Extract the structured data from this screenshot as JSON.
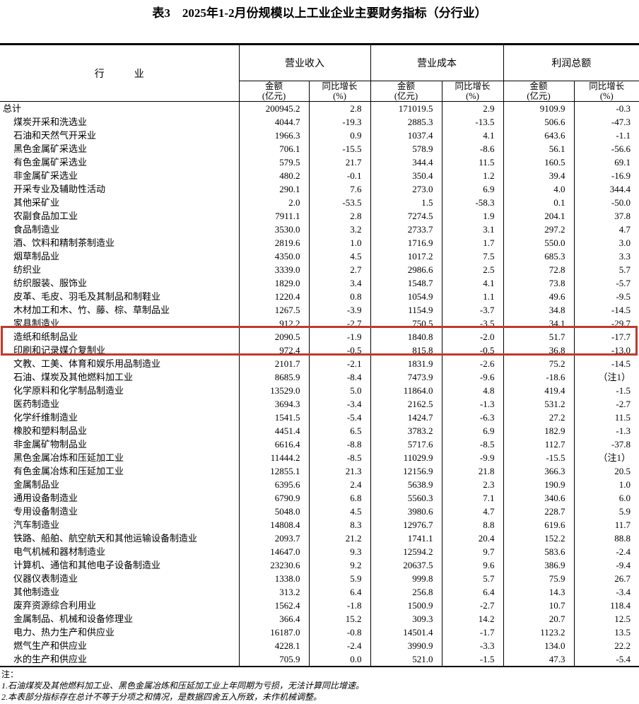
{
  "title": "表3　2025年1-2月份规模以上工业企业主要财务指标（分行业）",
  "colors": {
    "table_border": "#000000",
    "highlight_box": "#c0392b",
    "text": "#000000",
    "background": "#ffffff"
  },
  "table": {
    "industry_header": "行　业",
    "groups": [
      {
        "label": "营业收入"
      },
      {
        "label": "营业成本"
      },
      {
        "label": "利润总额"
      }
    ],
    "sub_headers": {
      "amount_line1": "金额",
      "amount_line2": "(亿元)",
      "growth_line1": "同比增长",
      "growth_line2": "(%)"
    },
    "rows": [
      {
        "industry": "总计",
        "indent": false,
        "highlight": false,
        "values": [
          "200945.2",
          "2.8",
          "171019.5",
          "2.9",
          "9109.9",
          "-0.3"
        ]
      },
      {
        "industry": "煤炭开采和洗选业",
        "indent": true,
        "highlight": false,
        "values": [
          "4044.7",
          "-19.3",
          "2885.3",
          "-13.5",
          "506.6",
          "-47.3"
        ]
      },
      {
        "industry": "石油和天然气开采业",
        "indent": true,
        "highlight": false,
        "values": [
          "1966.3",
          "0.9",
          "1037.4",
          "4.1",
          "643.6",
          "-1.1"
        ]
      },
      {
        "industry": "黑色金属矿采选业",
        "indent": true,
        "highlight": false,
        "values": [
          "706.1",
          "-15.5",
          "578.9",
          "-8.6",
          "56.1",
          "-56.6"
        ]
      },
      {
        "industry": "有色金属矿采选业",
        "indent": true,
        "highlight": false,
        "values": [
          "579.5",
          "21.7",
          "344.4",
          "11.5",
          "160.5",
          "69.1"
        ]
      },
      {
        "industry": "非金属矿采选业",
        "indent": true,
        "highlight": false,
        "values": [
          "480.2",
          "-0.1",
          "350.4",
          "1.2",
          "39.4",
          "-16.9"
        ]
      },
      {
        "industry": "开采专业及辅助性活动",
        "indent": true,
        "highlight": false,
        "values": [
          "290.1",
          "7.6",
          "273.0",
          "6.9",
          "4.0",
          "344.4"
        ]
      },
      {
        "industry": "其他采矿业",
        "indent": true,
        "highlight": false,
        "values": [
          "2.0",
          "-53.5",
          "1.5",
          "-58.3",
          "0.1",
          "-50.0"
        ]
      },
      {
        "industry": "农副食品加工业",
        "indent": true,
        "highlight": false,
        "values": [
          "7911.1",
          "2.8",
          "7274.5",
          "1.9",
          "204.1",
          "37.8"
        ]
      },
      {
        "industry": "食品制造业",
        "indent": true,
        "highlight": false,
        "values": [
          "3530.0",
          "3.2",
          "2733.7",
          "3.1",
          "297.2",
          "4.7"
        ]
      },
      {
        "industry": "酒、饮料和精制茶制造业",
        "indent": true,
        "highlight": false,
        "values": [
          "2819.6",
          "1.0",
          "1716.9",
          "1.7",
          "550.0",
          "3.0"
        ]
      },
      {
        "industry": "烟草制品业",
        "indent": true,
        "highlight": false,
        "values": [
          "4350.0",
          "4.5",
          "1017.2",
          "7.5",
          "685.3",
          "3.3"
        ]
      },
      {
        "industry": "纺织业",
        "indent": true,
        "highlight": false,
        "values": [
          "3339.0",
          "2.7",
          "2986.6",
          "2.5",
          "72.8",
          "5.7"
        ]
      },
      {
        "industry": "纺织服装、服饰业",
        "indent": true,
        "highlight": false,
        "values": [
          "1829.0",
          "3.4",
          "1548.7",
          "4.1",
          "73.8",
          "-5.7"
        ]
      },
      {
        "industry": "皮革、毛皮、羽毛及其制品和制鞋业",
        "indent": true,
        "highlight": false,
        "values": [
          "1220.4",
          "0.8",
          "1054.9",
          "1.1",
          "49.6",
          "-9.5"
        ]
      },
      {
        "industry": "木材加工和木、竹、藤、棕、草制品业",
        "indent": true,
        "highlight": false,
        "values": [
          "1267.5",
          "-3.9",
          "1154.9",
          "-3.7",
          "34.8",
          "-14.5"
        ]
      },
      {
        "industry": "家具制造业",
        "indent": true,
        "highlight": false,
        "values": [
          "912.2",
          "-2.7",
          "750.5",
          "-3.5",
          "34.1",
          "-29.7"
        ]
      },
      {
        "industry": "造纸和纸制品业",
        "indent": true,
        "highlight": true,
        "values": [
          "2090.5",
          "-1.9",
          "1840.8",
          "-2.0",
          "51.7",
          "-17.7"
        ]
      },
      {
        "industry": "印刷和记录媒介复制业",
        "indent": true,
        "highlight": true,
        "values": [
          "972.4",
          "-0.5",
          "815.8",
          "-0.5",
          "36.8",
          "-13.0"
        ]
      },
      {
        "industry": "文教、工美、体育和娱乐用品制造业",
        "indent": true,
        "highlight": false,
        "values": [
          "2101.7",
          "-2.1",
          "1831.9",
          "-2.6",
          "75.2",
          "-14.5"
        ]
      },
      {
        "industry": "石油、煤炭及其他燃料加工业",
        "indent": true,
        "highlight": false,
        "values": [
          "8685.9",
          "-8.4",
          "7473.9",
          "-9.6",
          "-18.6",
          "（注1）"
        ]
      },
      {
        "industry": "化学原料和化学制品制造业",
        "indent": true,
        "highlight": false,
        "values": [
          "13529.0",
          "5.0",
          "11864.0",
          "4.8",
          "419.4",
          "-1.5"
        ]
      },
      {
        "industry": "医药制造业",
        "indent": true,
        "highlight": false,
        "values": [
          "3694.3",
          "-3.4",
          "2162.5",
          "-1.3",
          "531.2",
          "-2.7"
        ]
      },
      {
        "industry": "化学纤维制造业",
        "indent": true,
        "highlight": false,
        "values": [
          "1541.5",
          "-5.4",
          "1424.7",
          "-6.3",
          "27.2",
          "11.5"
        ]
      },
      {
        "industry": "橡胶和塑料制品业",
        "indent": true,
        "highlight": false,
        "values": [
          "4451.4",
          "6.5",
          "3783.2",
          "6.9",
          "182.9",
          "-1.3"
        ]
      },
      {
        "industry": "非金属矿物制品业",
        "indent": true,
        "highlight": false,
        "values": [
          "6616.4",
          "-8.8",
          "5717.6",
          "-8.5",
          "112.7",
          "-37.8"
        ]
      },
      {
        "industry": "黑色金属冶炼和压延加工业",
        "indent": true,
        "highlight": false,
        "values": [
          "11444.2",
          "-8.5",
          "11029.9",
          "-9.9",
          "-15.5",
          "（注1）"
        ]
      },
      {
        "industry": "有色金属冶炼和压延加工业",
        "indent": true,
        "highlight": false,
        "values": [
          "12855.1",
          "21.3",
          "12156.9",
          "21.8",
          "366.3",
          "20.5"
        ]
      },
      {
        "industry": "金属制品业",
        "indent": true,
        "highlight": false,
        "values": [
          "6395.6",
          "2.4",
          "5638.9",
          "2.3",
          "190.9",
          "1.0"
        ]
      },
      {
        "industry": "通用设备制造业",
        "indent": true,
        "highlight": false,
        "values": [
          "6790.9",
          "6.8",
          "5560.3",
          "7.1",
          "340.6",
          "6.0"
        ]
      },
      {
        "industry": "专用设备制造业",
        "indent": true,
        "highlight": false,
        "values": [
          "5048.0",
          "4.5",
          "3980.6",
          "4.7",
          "228.7",
          "5.9"
        ]
      },
      {
        "industry": "汽车制造业",
        "indent": true,
        "highlight": false,
        "values": [
          "14808.4",
          "8.3",
          "12976.7",
          "8.8",
          "619.6",
          "11.7"
        ]
      },
      {
        "industry": "铁路、船舶、航空航天和其他运输设备制造业",
        "indent": true,
        "highlight": false,
        "values": [
          "2093.7",
          "21.2",
          "1741.1",
          "20.4",
          "152.2",
          "88.8"
        ]
      },
      {
        "industry": "电气机械和器材制造业",
        "indent": true,
        "highlight": false,
        "values": [
          "14647.0",
          "9.3",
          "12594.2",
          "9.7",
          "583.6",
          "-2.4"
        ]
      },
      {
        "industry": "计算机、通信和其他电子设备制造业",
        "indent": true,
        "highlight": false,
        "values": [
          "23230.6",
          "9.2",
          "20637.5",
          "9.6",
          "386.9",
          "-9.4"
        ]
      },
      {
        "industry": "仪器仪表制造业",
        "indent": true,
        "highlight": false,
        "values": [
          "1338.0",
          "5.9",
          "999.8",
          "5.7",
          "75.9",
          "26.7"
        ]
      },
      {
        "industry": "其他制造业",
        "indent": true,
        "highlight": false,
        "values": [
          "313.2",
          "6.4",
          "256.8",
          "6.4",
          "14.3",
          "-3.4"
        ]
      },
      {
        "industry": "废弃资源综合利用业",
        "indent": true,
        "highlight": false,
        "values": [
          "1562.4",
          "-1.8",
          "1500.9",
          "-2.7",
          "10.7",
          "118.4"
        ]
      },
      {
        "industry": "金属制品、机械和设备修理业",
        "indent": true,
        "highlight": false,
        "values": [
          "366.4",
          "15.2",
          "309.3",
          "14.2",
          "20.7",
          "12.5"
        ]
      },
      {
        "industry": "电力、热力生产和供应业",
        "indent": true,
        "highlight": false,
        "values": [
          "16187.0",
          "-0.8",
          "14501.4",
          "-1.7",
          "1123.2",
          "13.5"
        ]
      },
      {
        "industry": "燃气生产和供应业",
        "indent": true,
        "highlight": false,
        "values": [
          "4228.1",
          "-2.4",
          "3990.9",
          "-3.3",
          "134.0",
          "22.2"
        ]
      },
      {
        "industry": "水的生产和供应业",
        "indent": true,
        "highlight": false,
        "values": [
          "705.9",
          "0.0",
          "521.0",
          "-1.5",
          "47.3",
          "-5.4"
        ]
      }
    ]
  },
  "notes": {
    "label": "注：",
    "items": [
      "1.石油煤炭及其他燃料加工业、黑色金属冶炼和压延加工业上年同期为亏损，无法计算同比增速。",
      "2.本表部分指标存在总计不等于分项之和情况，是数据四舍五入所致，未作机械调整。"
    ]
  }
}
